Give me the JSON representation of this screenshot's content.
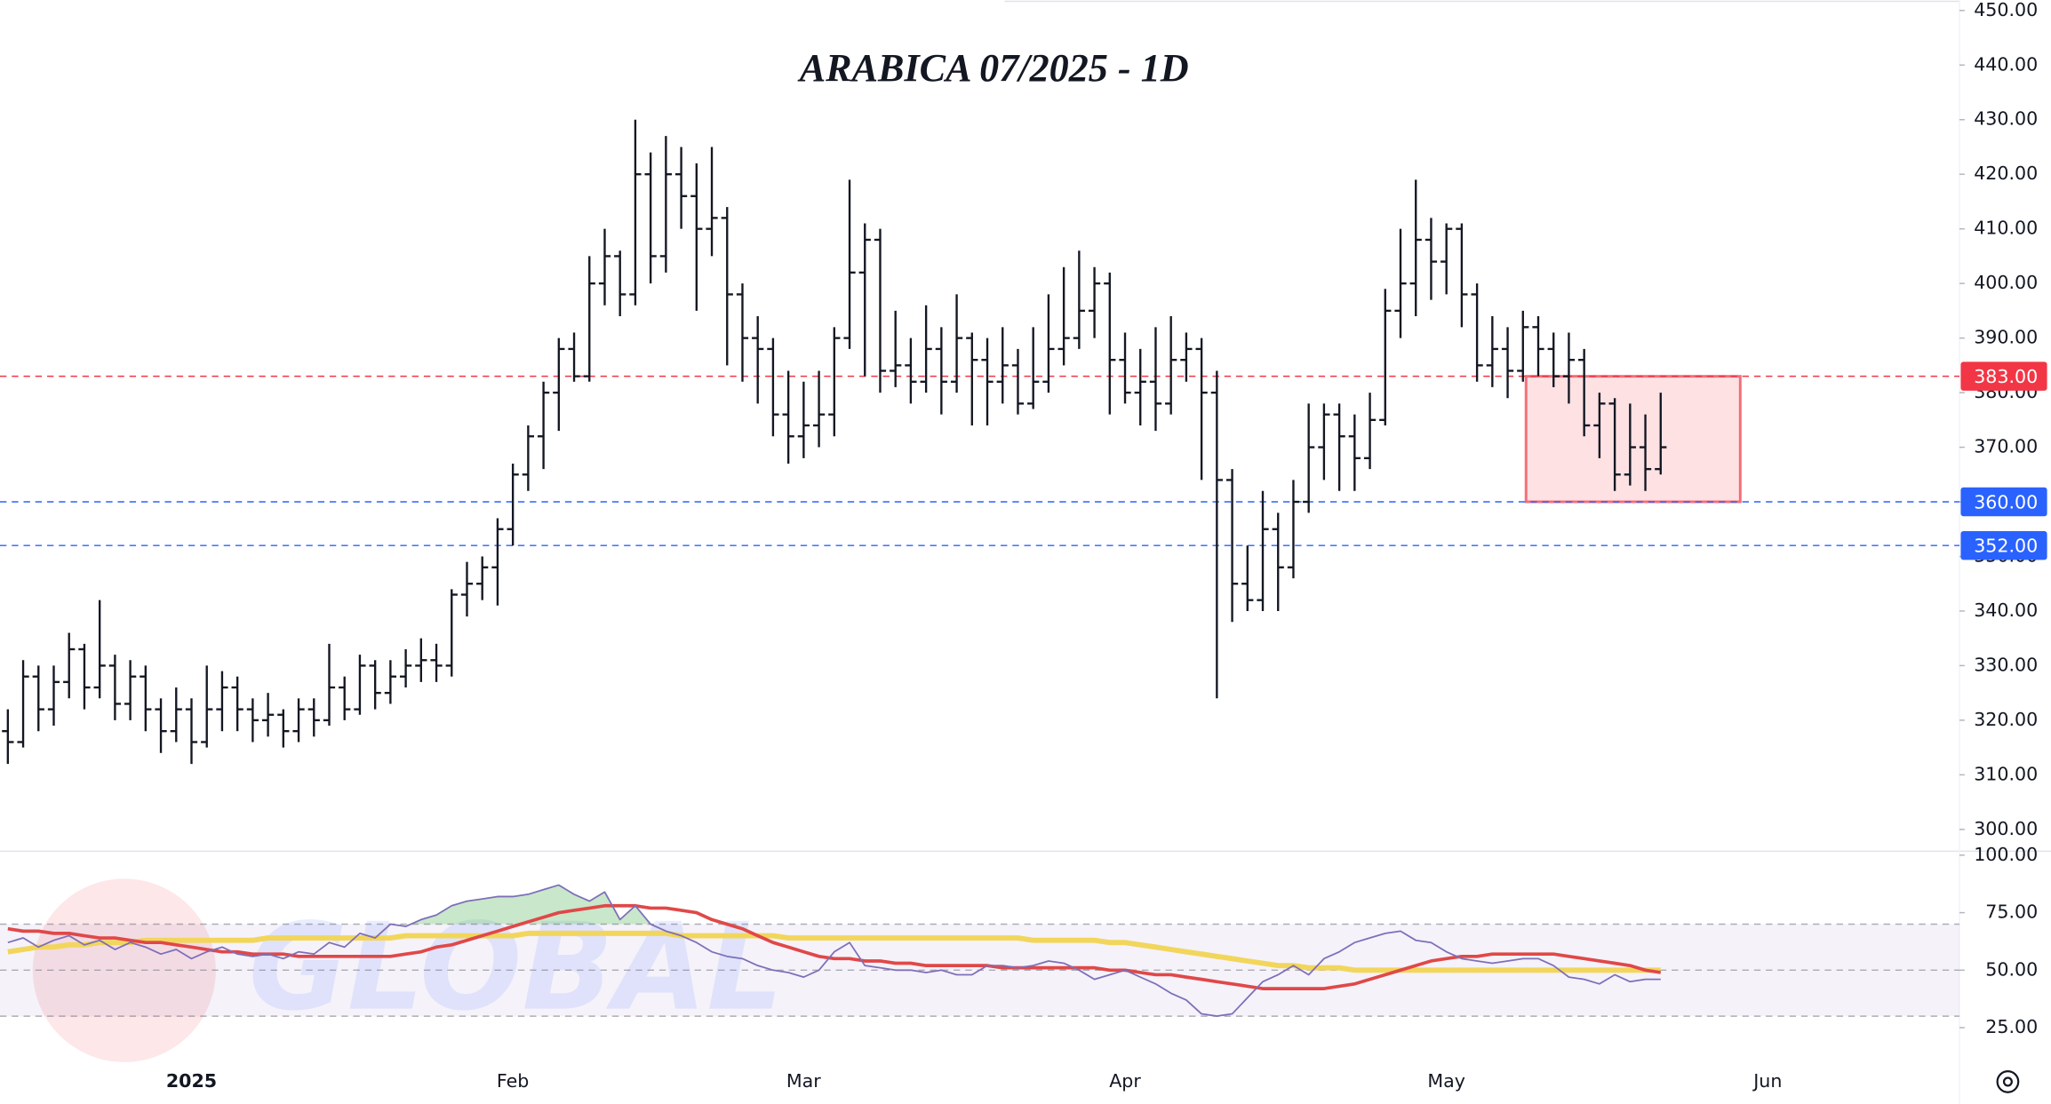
{
  "chart_data": {
    "type": "ohlc",
    "title": "ARABICA 07/2025 - 1D",
    "watermark": "GLOBAL",
    "categories": [
      null,
      null,
      null,
      null,
      null,
      null,
      null,
      null,
      null,
      null,
      null,
      null,
      "2025",
      null,
      null,
      null,
      null,
      null,
      null,
      null,
      null,
      null,
      null,
      null,
      null,
      null,
      null,
      null,
      null,
      null,
      null,
      null,
      null,
      "Feb",
      null,
      null,
      null,
      null,
      null,
      null,
      null,
      null,
      null,
      null,
      null,
      null,
      null,
      null,
      null,
      null,
      null,
      null,
      "Mar",
      null,
      null,
      null,
      null,
      null,
      null,
      null,
      null,
      null,
      null,
      null,
      null,
      null,
      null,
      null,
      null,
      null,
      null,
      null,
      null,
      "Apr",
      null,
      null,
      null,
      null,
      null,
      null,
      null,
      null,
      null,
      null,
      null,
      null,
      null,
      null,
      null,
      null,
      null,
      null,
      null,
      null,
      "May",
      null,
      null,
      null,
      null,
      null,
      null,
      null,
      null,
      null,
      null,
      null,
      null,
      null,
      null,
      null,
      null,
      null,
      null,
      null,
      null,
      "Jun",
      null,
      null,
      null,
      null,
      null,
      null,
      null,
      null,
      null,
      null,
      null,
      null
    ],
    "bars": [
      [
        318,
        322,
        312,
        316
      ],
      [
        316,
        331,
        315,
        328
      ],
      [
        328,
        330,
        318,
        322
      ],
      [
        322,
        330,
        319,
        327
      ],
      [
        327,
        336,
        324,
        333
      ],
      [
        333,
        334,
        322,
        326
      ],
      [
        326,
        342,
        324,
        330
      ],
      [
        330,
        332,
        320,
        323
      ],
      [
        323,
        331,
        320,
        328
      ],
      [
        328,
        330,
        318,
        322
      ],
      [
        322,
        324,
        314,
        318
      ],
      [
        318,
        326,
        316,
        322
      ],
      [
        322,
        324,
        312,
        316
      ],
      [
        316,
        330,
        315,
        322
      ],
      [
        322,
        329,
        318,
        326
      ],
      [
        326,
        328,
        318,
        322
      ],
      [
        322,
        324,
        316,
        320
      ],
      [
        320,
        325,
        317,
        321
      ],
      [
        321,
        322,
        315,
        318
      ],
      [
        318,
        324,
        316,
        322
      ],
      [
        322,
        324,
        317,
        320
      ],
      [
        320,
        334,
        319,
        326
      ],
      [
        326,
        328,
        320,
        322
      ],
      [
        322,
        332,
        321,
        330
      ],
      [
        330,
        331,
        322,
        325
      ],
      [
        325,
        331,
        323,
        328
      ],
      [
        328,
        333,
        326,
        330
      ],
      [
        330,
        335,
        327,
        331
      ],
      [
        331,
        334,
        327,
        330
      ],
      [
        330,
        344,
        328,
        343
      ],
      [
        343,
        349,
        339,
        345
      ],
      [
        345,
        350,
        342,
        348
      ],
      [
        348,
        357,
        341,
        355
      ],
      [
        355,
        367,
        352,
        365
      ],
      [
        365,
        374,
        362,
        372
      ],
      [
        372,
        382,
        366,
        380
      ],
      [
        380,
        390,
        373,
        388
      ],
      [
        388,
        391,
        382,
        383
      ],
      [
        383,
        405,
        382,
        400
      ],
      [
        400,
        410,
        396,
        405
      ],
      [
        405,
        406,
        394,
        398
      ],
      [
        398,
        430,
        396,
        420
      ],
      [
        420,
        424,
        400,
        405
      ],
      [
        405,
        427,
        402,
        420
      ],
      [
        420,
        425,
        410,
        416
      ],
      [
        416,
        422,
        395,
        410
      ],
      [
        410,
        425,
        405,
        412
      ],
      [
        412,
        414,
        385,
        398
      ],
      [
        398,
        400,
        382,
        390
      ],
      [
        390,
        394,
        378,
        388
      ],
      [
        388,
        390,
        372,
        376
      ],
      [
        376,
        384,
        367,
        372
      ],
      [
        372,
        382,
        368,
        374
      ],
      [
        374,
        384,
        370,
        376
      ],
      [
        376,
        392,
        372,
        390
      ],
      [
        390,
        419,
        388,
        402
      ],
      [
        402,
        411,
        383,
        408
      ],
      [
        408,
        410,
        380,
        384
      ],
      [
        384,
        395,
        381,
        385
      ],
      [
        385,
        390,
        378,
        382
      ],
      [
        382,
        396,
        380,
        388
      ],
      [
        388,
        392,
        376,
        382
      ],
      [
        382,
        398,
        380,
        390
      ],
      [
        390,
        391,
        374,
        386
      ],
      [
        386,
        390,
        374,
        382
      ],
      [
        382,
        392,
        378,
        385
      ],
      [
        385,
        388,
        376,
        378
      ],
      [
        378,
        392,
        377,
        382
      ],
      [
        382,
        398,
        380,
        388
      ],
      [
        388,
        403,
        385,
        390
      ],
      [
        390,
        406,
        388,
        395
      ],
      [
        395,
        403,
        390,
        400
      ],
      [
        400,
        402,
        376,
        386
      ],
      [
        386,
        391,
        378,
        380
      ],
      [
        380,
        388,
        374,
        382
      ],
      [
        382,
        392,
        373,
        378
      ],
      [
        378,
        394,
        376,
        386
      ],
      [
        386,
        391,
        382,
        388
      ],
      [
        388,
        390,
        364,
        380
      ],
      [
        380,
        384,
        324,
        364
      ],
      [
        364,
        366,
        338,
        345
      ],
      [
        345,
        352,
        340,
        342
      ],
      [
        342,
        362,
        340,
        355
      ],
      [
        355,
        358,
        340,
        348
      ],
      [
        348,
        364,
        346,
        360
      ],
      [
        360,
        378,
        358,
        370
      ],
      [
        370,
        378,
        364,
        376
      ],
      [
        376,
        378,
        362,
        372
      ],
      [
        372,
        376,
        362,
        368
      ],
      [
        368,
        380,
        366,
        375
      ],
      [
        375,
        399,
        374,
        395
      ],
      [
        395,
        410,
        390,
        400
      ],
      [
        400,
        419,
        394,
        408
      ],
      [
        408,
        412,
        397,
        404
      ],
      [
        404,
        411,
        398,
        410
      ],
      [
        410,
        411,
        392,
        398
      ],
      [
        398,
        400,
        382,
        385
      ],
      [
        385,
        394,
        381,
        388
      ],
      [
        388,
        392,
        379,
        384
      ],
      [
        384,
        395,
        382,
        392
      ],
      [
        392,
        394,
        383,
        388
      ],
      [
        388,
        391,
        381,
        383
      ],
      [
        383,
        391,
        378,
        386
      ],
      [
        386,
        388,
        372,
        374
      ],
      [
        374,
        380,
        368,
        378
      ],
      [
        378,
        379,
        362,
        365
      ],
      [
        365,
        378,
        363,
        370
      ],
      [
        370,
        376,
        362,
        366
      ],
      [
        366,
        380,
        365,
        370
      ],
      null,
      null,
      null,
      null,
      null,
      null,
      null,
      null,
      null,
      null,
      null,
      null,
      null,
      null,
      null,
      null,
      null,
      null,
      null
    ],
    "color": "#131722",
    "ylim": [
      296,
      450
    ],
    "yticks": [
      {
        "value": 300,
        "label": "300.00"
      },
      {
        "value": 310,
        "label": "310.00"
      },
      {
        "value": 320,
        "label": "320.00"
      },
      {
        "value": 330,
        "label": "330.00"
      },
      {
        "value": 340,
        "label": "340.00"
      },
      {
        "value": 350,
        "label": "350.00"
      },
      {
        "value": 360,
        "label": "360.00"
      },
      {
        "value": 370,
        "label": "370.00"
      },
      {
        "value": 380,
        "label": "380.00"
      },
      {
        "value": 390,
        "label": "390.00"
      },
      {
        "value": 400,
        "label": "400.00"
      },
      {
        "value": 410,
        "label": "410.00"
      },
      {
        "value": 420,
        "label": "420.00"
      },
      {
        "value": 430,
        "label": "430.00"
      },
      {
        "value": 440,
        "label": "440.00"
      },
      {
        "value": 450,
        "label": "450.00"
      }
    ],
    "levels": [
      {
        "value": 383,
        "label": "383.00",
        "color": "#f23645"
      },
      {
        "value": 360,
        "label": "360.00",
        "color": "#2962ff"
      },
      {
        "value": 352,
        "label": "352.00",
        "color": "#2962ff"
      }
    ],
    "zone": {
      "top": 383,
      "bottom": 360,
      "color": "#f23645"
    },
    "indicator": {
      "ylim": [
        18,
        100
      ],
      "yticks": [
        {
          "value": 100,
          "label": "100.00"
        },
        {
          "value": 75,
          "label": "75.00"
        },
        {
          "value": 50,
          "label": "50.00"
        },
        {
          "value": 25,
          "label": "25.00"
        }
      ],
      "bands": [
        70,
        50,
        30
      ],
      "band_color": "#7e57c2",
      "overbought_color": "#4caf50",
      "oversold_color": "#f23645",
      "series": [
        {
          "color": "#7e6fb8",
          "values": [
            62,
            64,
            60,
            63,
            65,
            61,
            63,
            59,
            62,
            60,
            57,
            59,
            55,
            58,
            60,
            57,
            56,
            57,
            55,
            58,
            57,
            62,
            60,
            66,
            64,
            70,
            69,
            72,
            74,
            78,
            80,
            81,
            82,
            82,
            83,
            85,
            87,
            83,
            80,
            84,
            72,
            78,
            70,
            67,
            65,
            62,
            58,
            56,
            55,
            52,
            50,
            49,
            47,
            50,
            58,
            62,
            52,
            51,
            50,
            50,
            49,
            50,
            48,
            48,
            52,
            52,
            51,
            52,
            54,
            53,
            50,
            46,
            48,
            50,
            47,
            44,
            40,
            37,
            31,
            30,
            31,
            38,
            45,
            48,
            52,
            48,
            55,
            58,
            62,
            64,
            66,
            67,
            63,
            62,
            58,
            55,
            54,
            53,
            54,
            55,
            55,
            52,
            47,
            46,
            44,
            48,
            45,
            46,
            46,
            null,
            null,
            null,
            null,
            null,
            null,
            null,
            null,
            null,
            null,
            null,
            null,
            null,
            null,
            null,
            null,
            null,
            null,
            null
          ]
        },
        {
          "color": "#f2d65c",
          "values": [
            58,
            59,
            60,
            60,
            61,
            61,
            62,
            62,
            62,
            63,
            63,
            63,
            63,
            63,
            63,
            63,
            63,
            64,
            64,
            64,
            64,
            64,
            64,
            64,
            64,
            64,
            65,
            65,
            65,
            65,
            65,
            65,
            65,
            65,
            66,
            66,
            66,
            66,
            66,
            66,
            66,
            66,
            66,
            66,
            65,
            65,
            65,
            65,
            65,
            65,
            65,
            64,
            64,
            64,
            64,
            64,
            64,
            64,
            64,
            64,
            64,
            64,
            64,
            64,
            64,
            64,
            64,
            63,
            63,
            63,
            63,
            63,
            62,
            62,
            61,
            60,
            59,
            58,
            57,
            56,
            55,
            54,
            53,
            52,
            52,
            51,
            51,
            51,
            50,
            50,
            50,
            50,
            50,
            50,
            50,
            50,
            50,
            50,
            50,
            50,
            50,
            50,
            50,
            50,
            50,
            50,
            50,
            50,
            50,
            null,
            null,
            null,
            null,
            null,
            null,
            null,
            null,
            null,
            null,
            null,
            null,
            null,
            null,
            null,
            null,
            null,
            null,
            null
          ]
        },
        {
          "color": "#e04848",
          "values": [
            68,
            67,
            67,
            66,
            66,
            65,
            64,
            64,
            63,
            62,
            62,
            61,
            60,
            59,
            58,
            58,
            57,
            57,
            57,
            56,
            56,
            56,
            56,
            56,
            56,
            56,
            57,
            58,
            60,
            61,
            63,
            65,
            67,
            69,
            71,
            73,
            75,
            76,
            77,
            78,
            78,
            78,
            77,
            77,
            76,
            75,
            72,
            70,
            68,
            65,
            62,
            60,
            58,
            56,
            55,
            55,
            54,
            54,
            53,
            53,
            52,
            52,
            52,
            52,
            52,
            51,
            51,
            51,
            51,
            51,
            51,
            51,
            50,
            50,
            49,
            48,
            48,
            47,
            46,
            45,
            44,
            43,
            42,
            42,
            42,
            42,
            42,
            43,
            44,
            46,
            48,
            50,
            52,
            54,
            55,
            56,
            56,
            57,
            57,
            57,
            57,
            57,
            56,
            55,
            54,
            53,
            52,
            50,
            49,
            null,
            null,
            null,
            null,
            null,
            null,
            null,
            null,
            null,
            null,
            null,
            null,
            null,
            null,
            null,
            null,
            null,
            null,
            null
          ]
        }
      ]
    }
  }
}
